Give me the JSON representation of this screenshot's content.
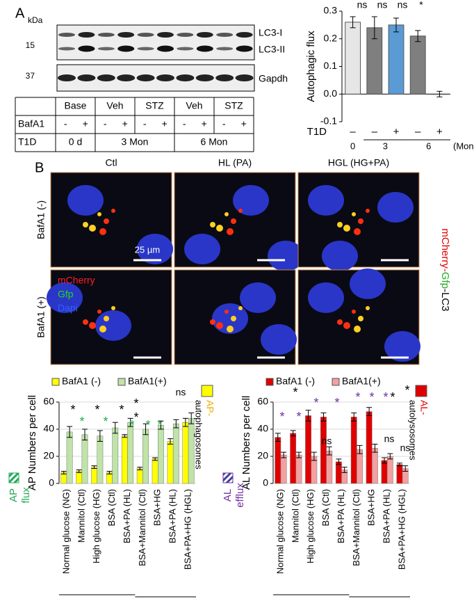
{
  "panel_a": {
    "label": "A",
    "kda": "kDa",
    "markers": [
      "15",
      "37"
    ],
    "bands": [
      "LC3-I",
      "LC3-II",
      "Gapdh"
    ],
    "table": {
      "header": [
        "Base",
        "Veh",
        "STZ",
        "Veh",
        "STZ"
      ],
      "bafa1_label": "BafA1",
      "bafa1": [
        "-",
        "+",
        "-",
        "+",
        "-",
        "+",
        "-",
        "+",
        "-",
        "+"
      ],
      "t1d_label": "T1D",
      "t1d": [
        "0 d",
        "3 Mon",
        "6 Mon"
      ]
    }
  },
  "panel_b": {
    "label": "B",
    "columns": [
      "Ctl",
      "HL (PA)",
      "HGL (HG+PA)"
    ],
    "rows": [
      "BafA1 (-)",
      "BafA1 (+)"
    ],
    "scale": "25 µm",
    "channels": [
      "mCherry",
      "Gfp",
      "Dapi"
    ],
    "side_label": [
      "mCherry-",
      "Gfp",
      "-LC3"
    ]
  },
  "chart_data": [
    {
      "type": "bar",
      "ylabel": "Autophagic flux",
      "categories": [
        "–",
        "–",
        "+",
        "–",
        "+"
      ],
      "x_row_label": "T1D",
      "groups": [
        "0",
        "3",
        "6"
      ],
      "group_unit": "(Mon)",
      "values": [
        0.26,
        0.24,
        0.25,
        0.21,
        0.0
      ],
      "errors": [
        0.02,
        0.04,
        0.025,
        0.02,
        0.01
      ],
      "colors": [
        "#e6e6e6",
        "#7f7f7f",
        "#5b9bd5",
        "#7f7f7f",
        "#5b9bd5"
      ],
      "ylim": [
        -0.1,
        0.3
      ],
      "yticks": [
        -0.1,
        {
          "value": 0,
          "label": "0.0"
        },
        0.1,
        0.2,
        0.3
      ],
      "annotations": [
        "ns",
        "ns",
        "ns",
        "*"
      ]
    },
    {
      "type": "bar",
      "ylabel": "AP Numbers per cell",
      "categories": [
        "Normal glucose (NG)",
        "Mannitol (Ctl)",
        "High glucose (HG)",
        "BSA (Ctl)",
        "BSA+PA (HL)",
        "BSA+Mannitol (Ctl)",
        "BSA+HG",
        "BSA+PA (HL)",
        "BSA+PA+HG (HGL)"
      ],
      "series": [
        {
          "name": "BafA1 (-)",
          "color": "#ffff00",
          "values": [
            8,
            9,
            12,
            8,
            35,
            11,
            18,
            31,
            45
          ],
          "errors": [
            1,
            1,
            1,
            1,
            1,
            1,
            1,
            2,
            3
          ]
        },
        {
          "name": "BafA1(+)",
          "color": "#bfe3a8",
          "values": [
            38,
            36,
            35,
            41,
            45,
            40,
            43,
            44,
            48
          ],
          "errors": [
            4,
            4,
            4,
            4,
            3,
            4,
            3,
            3,
            4
          ]
        }
      ],
      "ylim": [
        0,
        60
      ],
      "yticks": [
        0,
        20,
        40,
        60
      ],
      "flux_label": [
        "AP",
        "flux"
      ],
      "side_label": [
        "AP-",
        "autophagosomes"
      ],
      "annotations": [
        {
          "text": "*",
          "color": "#000000"
        },
        {
          "text": "*",
          "color": "#22aa55"
        },
        {
          "text": "*",
          "color": "#000000"
        },
        {
          "text": "*",
          "color": "#22aa55"
        },
        {
          "text": "*",
          "color": "#000000"
        },
        {
          "text": "*",
          "color": "#22aa55"
        },
        {
          "text": "*",
          "color": "#000000"
        },
        {
          "text": "*",
          "color": "#000000"
        },
        {
          "text": "*",
          "color": "#22aa55"
        },
        {
          "text": "*",
          "color": "#22aa55"
        },
        {
          "text": "ns",
          "color": "#000000"
        }
      ]
    },
    {
      "type": "bar",
      "ylabel": "AL Numbers per cell",
      "categories": [
        "Normal glucose (NG)",
        "Mannitol (Ctl)",
        "High glucose (HG)",
        "BSA (Ctl)",
        "BSA+PA (HL)",
        "BSA+Mannitol (Ctl)",
        "BSA+HG",
        "BSA+PA (HL)",
        "BSA+PA+HG (HGL)"
      ],
      "series": [
        {
          "name": "BafA1 (-)",
          "color": "#e00000",
          "values": [
            34,
            37,
            50,
            49,
            16,
            49,
            53,
            17,
            14
          ],
          "errors": [
            3,
            2,
            4,
            3,
            2,
            3,
            3,
            2,
            1
          ]
        },
        {
          "name": "BafA1(+)",
          "color": "#f2a0a0",
          "values": [
            21,
            21,
            20,
            24,
            10,
            25,
            26,
            20,
            11
          ],
          "errors": [
            2,
            2,
            3,
            3,
            2,
            3,
            3,
            2,
            2
          ]
        }
      ],
      "ylim": [
        0,
        60
      ],
      "yticks": [
        0,
        20,
        40,
        60
      ],
      "flux_label": [
        "AL",
        "efflux"
      ],
      "side_label": [
        "AL-",
        "autolysosomes"
      ],
      "annotations": [
        {
          "text": "*",
          "color": "#7030a0"
        },
        {
          "text": "*",
          "color": "#000000"
        },
        {
          "text": "*",
          "color": "#7030a0"
        },
        {
          "text": "*",
          "color": "#7030a0"
        },
        {
          "text": "*",
          "color": "#7030a0"
        },
        {
          "text": "ns",
          "color": "#000000"
        },
        {
          "text": "*",
          "color": "#7030a0"
        },
        {
          "text": "*",
          "color": "#7030a0"
        },
        {
          "text": "*",
          "color": "#7030a0"
        },
        {
          "text": "*",
          "color": "#000000"
        },
        {
          "text": "ns",
          "color": "#000000"
        },
        {
          "text": "*",
          "color": "#000000"
        },
        {
          "text": "ns",
          "color": "#000000"
        }
      ]
    }
  ]
}
